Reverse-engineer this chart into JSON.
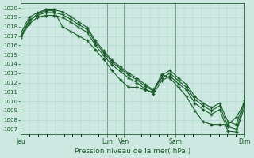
{
  "title": "Pression niveau de la mer( hPa )",
  "bg_color": "#cce8e0",
  "grid_color": "#aad4cc",
  "line_color": "#1a5c2a",
  "x_tick_labels": [
    "Jeu",
    "Lun",
    "Ven",
    "Sam",
    "Dim"
  ],
  "x_tick_positions": [
    0,
    5,
    6,
    9,
    13
  ],
  "ylim": [
    1006.5,
    1020.5
  ],
  "ylabel_min": 1007,
  "ylabel_max": 1020,
  "series": [
    [
      1017.0,
      1018.7,
      1019.2,
      1019.5,
      1019.5,
      1019.3,
      1018.8,
      1018.2,
      1017.7,
      1016.3,
      1015.2,
      1014.2,
      1013.5,
      1012.8,
      1012.3,
      1011.6,
      1011.1,
      1012.5,
      1013.0,
      1012.2,
      1011.5,
      1010.2,
      1009.5,
      1009.0,
      1009.5,
      1007.3,
      1007.0,
      1009.8
    ],
    [
      1017.3,
      1019.0,
      1019.5,
      1019.8,
      1019.8,
      1019.6,
      1019.1,
      1018.5,
      1017.9,
      1016.5,
      1015.4,
      1014.4,
      1013.7,
      1013.0,
      1012.5,
      1011.8,
      1011.2,
      1012.8,
      1013.3,
      1012.5,
      1011.8,
      1010.5,
      1009.8,
      1009.3,
      1009.8,
      1007.8,
      1007.5,
      1010.1
    ],
    [
      1016.8,
      1018.3,
      1019.0,
      1019.2,
      1019.2,
      1019.0,
      1018.5,
      1017.9,
      1017.4,
      1016.0,
      1014.9,
      1013.9,
      1013.2,
      1012.5,
      1012.0,
      1011.3,
      1010.8,
      1012.2,
      1012.7,
      1011.9,
      1011.2,
      1009.8,
      1009.1,
      1008.6,
      1009.1,
      1006.8,
      1006.7,
      1009.4
    ],
    [
      1017.0,
      1018.5,
      1019.4,
      1019.7,
      1019.7,
      1018.0,
      1017.5,
      1017.0,
      1016.5,
      1015.5,
      1014.5,
      1013.3,
      1012.3,
      1011.5,
      1011.5,
      1011.2,
      1011.0,
      1012.9,
      1012.5,
      1011.5,
      1010.5,
      1009.0,
      1007.8,
      1007.5,
      1007.5,
      1007.5,
      1008.3,
      1009.8
    ]
  ]
}
